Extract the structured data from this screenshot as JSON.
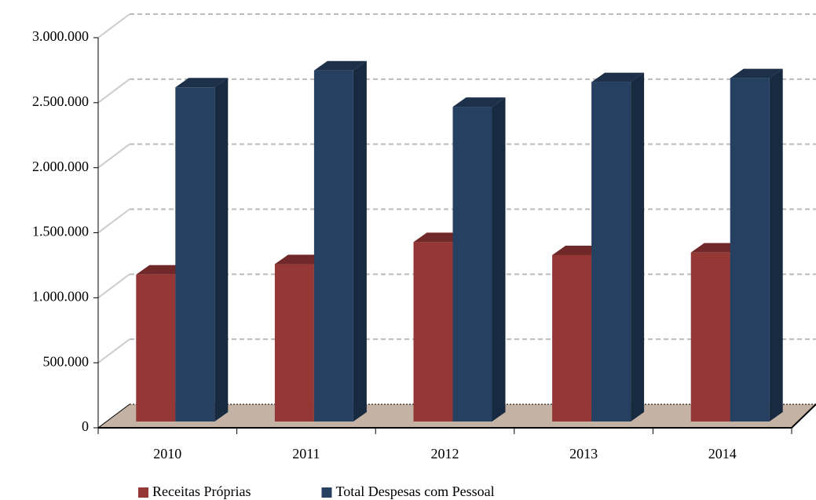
{
  "chart_data": {
    "type": "bar3d",
    "categories": [
      "2010",
      "2011",
      "2012",
      "2013",
      "2014"
    ],
    "series": [
      {
        "name": "Receitas Próprias",
        "color": "#953735",
        "values": [
          1130000,
          1210000,
          1380000,
          1280000,
          1300000
        ]
      },
      {
        "name": "Total Despesas com Pessoal",
        "color": "#254061",
        "values": [
          2570000,
          2700000,
          2420000,
          2610000,
          2640000
        ]
      }
    ],
    "ylim": [
      0,
      3000000
    ],
    "yticks": [
      0,
      {
        "value": 500000,
        "label": "500.000"
      },
      {
        "value": 1000000,
        "label": "1.000.000"
      },
      {
        "value": 1500000,
        "label": "1.500.000"
      },
      {
        "value": 2000000,
        "label": "2.000.000"
      },
      {
        "value": 2500000,
        "label": "2.500.000"
      },
      {
        "value": 3000000,
        "label": "3.000.000"
      }
    ],
    "grid": true
  }
}
